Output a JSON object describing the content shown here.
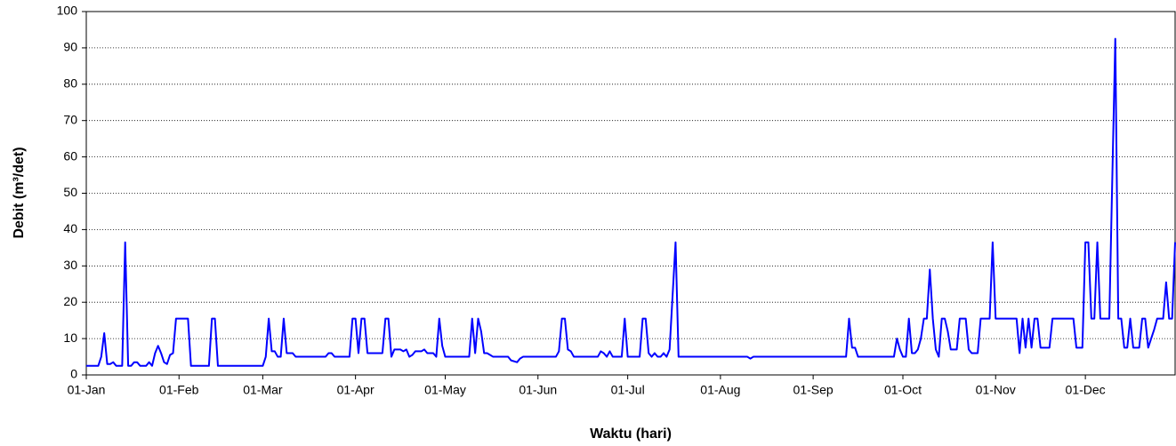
{
  "chart_data": {
    "type": "line",
    "x_label": "Waktu (hari)",
    "y_label": "Debit (m³/det)",
    "color": "#0000ff",
    "grid": true,
    "xlim": [
      1,
      365
    ],
    "ylim": [
      0,
      100
    ],
    "yticks": [
      0,
      10,
      20,
      30,
      40,
      50,
      60,
      70,
      80,
      90,
      100
    ],
    "xticks": [
      {
        "value": 1,
        "label": "01-Jan"
      },
      {
        "value": 32,
        "label": "01-Feb"
      },
      {
        "value": 60,
        "label": "01-Mar"
      },
      {
        "value": 91,
        "label": "01-Apr"
      },
      {
        "value": 121,
        "label": "01-May"
      },
      {
        "value": 152,
        "label": "01-Jun"
      },
      {
        "value": 182,
        "label": "01-Jul"
      },
      {
        "value": 213,
        "label": "01-Aug"
      },
      {
        "value": 244,
        "label": "01-Sep"
      },
      {
        "value": 274,
        "label": "01-Oct"
      },
      {
        "value": 305,
        "label": "01-Nov"
      },
      {
        "value": 335,
        "label": "01-Dec"
      }
    ],
    "x": [
      1,
      5,
      6,
      7,
      8,
      9,
      10,
      11,
      13,
      14,
      15,
      16,
      17,
      18,
      19,
      21,
      22,
      23,
      24,
      25,
      26,
      27,
      28,
      29,
      30,
      31,
      35,
      36,
      42,
      43,
      44,
      45,
      60,
      61,
      62,
      63,
      64,
      65,
      66,
      67,
      68,
      70,
      71,
      81,
      82,
      83,
      84,
      89,
      90,
      91,
      92,
      93,
      94,
      95,
      100,
      101,
      102,
      103,
      104,
      106,
      107,
      108,
      109,
      110,
      111,
      113,
      114,
      115,
      117,
      118,
      119,
      120,
      121,
      129,
      130,
      131,
      132,
      133,
      134,
      135,
      136,
      137,
      142,
      143,
      145,
      146,
      147,
      158,
      159,
      160,
      161,
      162,
      163,
      164,
      172,
      173,
      174,
      175,
      176,
      177,
      180,
      181,
      182,
      186,
      187,
      188,
      189,
      190,
      191,
      192,
      193,
      194,
      195,
      196,
      198,
      199,
      222,
      223,
      224,
      255,
      256,
      257,
      258,
      259,
      271,
      272,
      273,
      274,
      275,
      276,
      277,
      278,
      279,
      280,
      281,
      282,
      283,
      284,
      285,
      286,
      287,
      288,
      289,
      290,
      292,
      293,
      295,
      296,
      297,
      299,
      300,
      303,
      304,
      305,
      312,
      313,
      314,
      315,
      316,
      317,
      318,
      319,
      320,
      323,
      324,
      331,
      332,
      334,
      335,
      336,
      337,
      338,
      339,
      340,
      343,
      345,
      346,
      347,
      348,
      349,
      350,
      351,
      353,
      354,
      355,
      356,
      357,
      358,
      359,
      361,
      362,
      363,
      364,
      365
    ],
    "values": [
      2.5,
      2.5,
      5,
      11.5,
      3,
      3,
      3.5,
      2.5,
      2.5,
      36.5,
      2.5,
      2.5,
      3.5,
      3.5,
      2.5,
      2.5,
      3.5,
      2.5,
      6,
      8,
      6,
      3.5,
      3,
      5.5,
      6,
      15.5,
      15.5,
      2.5,
      2.5,
      15.5,
      15.5,
      2.5,
      2.5,
      5,
      15.5,
      6.5,
      6.5,
      5,
      5,
      15.5,
      6,
      6,
      5,
      5,
      6,
      6,
      5,
      5,
      15.5,
      15.5,
      6,
      15.5,
      15.5,
      6,
      6,
      15.5,
      15.5,
      5,
      7,
      7,
      6.5,
      7,
      5,
      5.5,
      6.5,
      6.5,
      7,
      6,
      6,
      5,
      15.5,
      8,
      5,
      5,
      15.5,
      6,
      15.5,
      12,
      6,
      6,
      5.5,
      5,
      5,
      4,
      3.5,
      4.5,
      5,
      5,
      6.5,
      15.5,
      15.5,
      7,
      6.5,
      5,
      5,
      6.5,
      6,
      5,
      6.5,
      5,
      5,
      15.5,
      5,
      5,
      15.5,
      15.5,
      6,
      5,
      6,
      5,
      5,
      6,
      5,
      7,
      36.5,
      5,
      5,
      4.5,
      5,
      5,
      15.5,
      7.5,
      7.5,
      5,
      5,
      10,
      7,
      5,
      5,
      15.5,
      6,
      6,
      7,
      10,
      15.5,
      15.5,
      29,
      15.5,
      7,
      5,
      15.5,
      15.5,
      12,
      7,
      7,
      15.5,
      15.5,
      7,
      6,
      6,
      15.5,
      15.5,
      36.5,
      15.5,
      15.5,
      6,
      15.5,
      7.5,
      15.5,
      7.5,
      15.5,
      15.5,
      7.5,
      7.5,
      15.5,
      15.5,
      7.5,
      7.5,
      36.5,
      36.5,
      15.5,
      15.5,
      36.5,
      15.5,
      15.5,
      92.5,
      15.5,
      15.5,
      7.5,
      7.5,
      15.5,
      7.5,
      7.5,
      15.5,
      15.5,
      7.5,
      10,
      12.5,
      15.5,
      15.5,
      25.5,
      15.5,
      15.5,
      36.5
    ]
  }
}
